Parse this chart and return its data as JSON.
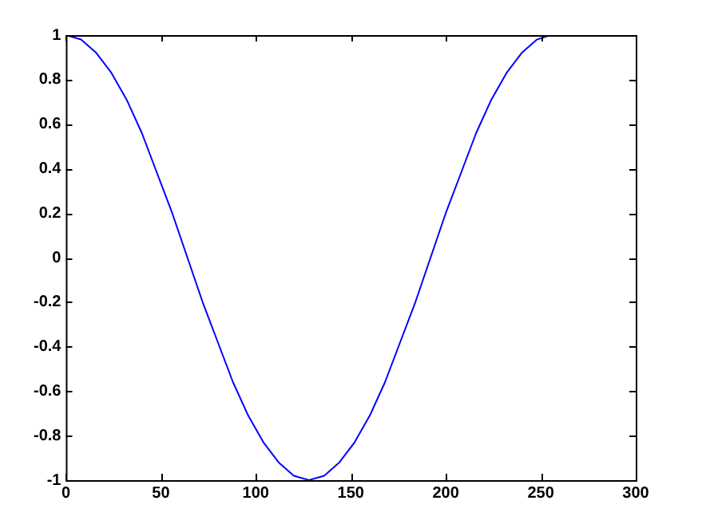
{
  "chart_data": {
    "type": "line",
    "xlim": [
      0,
      300
    ],
    "xticks": [
      0,
      50,
      100,
      150,
      200,
      250,
      300
    ],
    "ylim": [
      -1,
      1
    ],
    "yticks": [
      -1,
      -0.8,
      -0.6,
      -0.4,
      -0.2,
      0,
      0.2,
      0.4,
      0.6,
      0.8,
      1
    ],
    "grid": false,
    "legend": false,
    "marker": "none",
    "line_style": "solid",
    "x": [
      0,
      8,
      16,
      24,
      32,
      40,
      48,
      56,
      64,
      72,
      80,
      88,
      96,
      104,
      112,
      120,
      128,
      136,
      144,
      152,
      160,
      168,
      176,
      184,
      192,
      200,
      208,
      216,
      224,
      232,
      240,
      248,
      255
    ],
    "series": [
      {
        "color": "#0000ff",
        "values": [
          1,
          0.98,
          0.92,
          0.83,
          0.71,
          0.56,
          0.38,
          0.2,
          0,
          -0.2,
          -0.38,
          -0.56,
          -0.71,
          -0.83,
          -0.92,
          -0.98,
          -1,
          -0.98,
          -0.92,
          -0.83,
          -0.71,
          -0.56,
          -0.38,
          -0.2,
          0,
          0.2,
          0.38,
          0.56,
          0.71,
          0.83,
          0.92,
          0.98,
          1
        ]
      }
    ]
  }
}
